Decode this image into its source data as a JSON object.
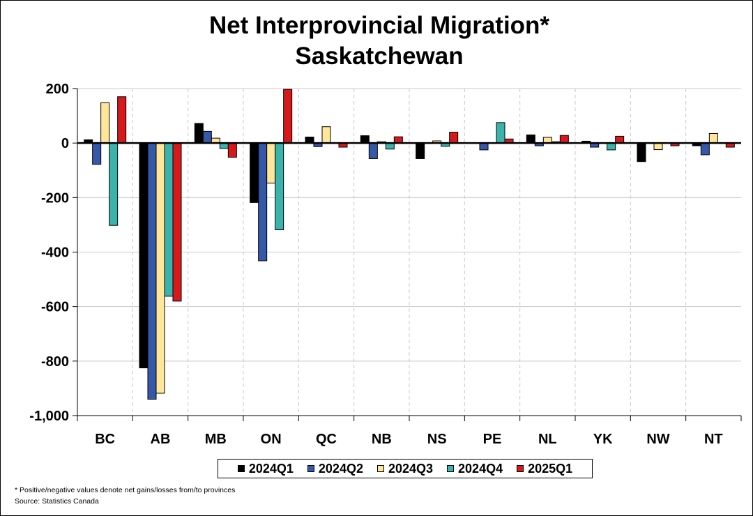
{
  "chart_data": {
    "type": "bar",
    "title_line1": "Net Interprovincial Migration*",
    "title_line2": "Saskatchewan",
    "categories": [
      "BC",
      "AB",
      "MB",
      "ON",
      "QC",
      "NB",
      "NS",
      "PE",
      "NL",
      "YK",
      "NW",
      "NT"
    ],
    "series": [
      {
        "name": "2024Q1",
        "color": "#000000",
        "values": [
          12,
          -825,
          72,
          -218,
          22,
          27,
          -57,
          0,
          30,
          7,
          -68,
          -10
        ]
      },
      {
        "name": "2024Q2",
        "color": "#3558a8",
        "values": [
          -78,
          -940,
          43,
          -432,
          -13,
          -57,
          0,
          -25,
          -10,
          -15,
          0,
          -43
        ]
      },
      {
        "name": "2024Q3",
        "color": "#ffe699",
        "values": [
          148,
          -918,
          18,
          -147,
          60,
          5,
          8,
          0,
          21,
          0,
          -24,
          35
        ]
      },
      {
        "name": "2024Q4",
        "color": "#3bb3ad",
        "values": [
          -302,
          -562,
          -20,
          -318,
          0,
          -22,
          -12,
          75,
          5,
          -25,
          0,
          0
        ]
      },
      {
        "name": "2025Q1",
        "color": "#d7191c",
        "values": [
          170,
          -580,
          -52,
          197,
          -15,
          23,
          40,
          15,
          28,
          25,
          -10,
          -15
        ]
      }
    ],
    "ylim": [
      -1000,
      200
    ],
    "yticks": [
      200,
      0,
      -200,
      -400,
      -600,
      -800,
      -1000
    ],
    "ytick_labels": [
      "200",
      "0",
      "-200",
      "-400",
      "-600",
      "-800",
      "-1,000"
    ],
    "grid": true,
    "legend_position": "bottom"
  },
  "footnote": "* Positive/negative values denote net gains/losses from/to provinces",
  "source": "Source: Statistics Canada"
}
